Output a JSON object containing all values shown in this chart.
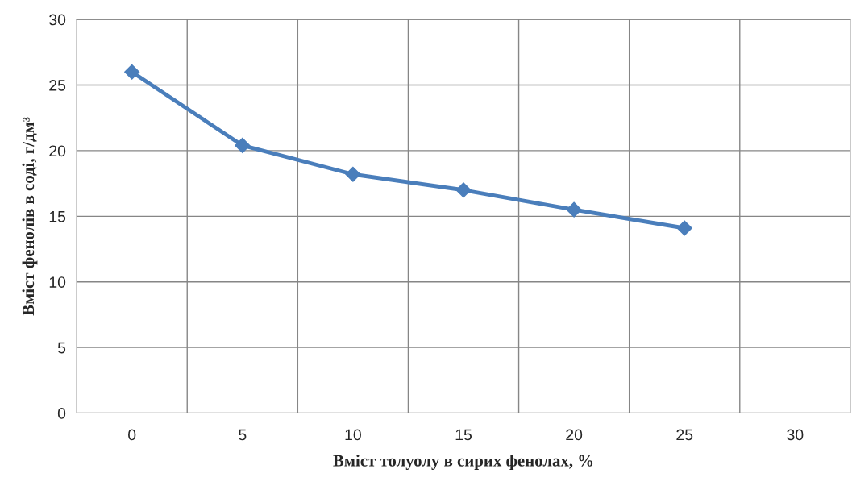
{
  "chart_data": {
    "type": "line",
    "xlabel": "Вміст толуолу в сирих фенолах, %",
    "ylabel": "Вміст фенолів в соді, г/дм³",
    "categories": [
      "0",
      "5",
      "10",
      "15",
      "20",
      "25",
      "30"
    ],
    "series": [
      {
        "color": "#4a7ebb",
        "values": [
          26,
          20.4,
          18.2,
          17,
          15.5,
          14.1,
          null
        ]
      }
    ],
    "ylim": [
      0,
      30
    ],
    "yticks": [
      0,
      5,
      10,
      15,
      20,
      25,
      30
    ],
    "grid": true,
    "marker": "diamond",
    "line_style": "solid",
    "legend": false
  }
}
